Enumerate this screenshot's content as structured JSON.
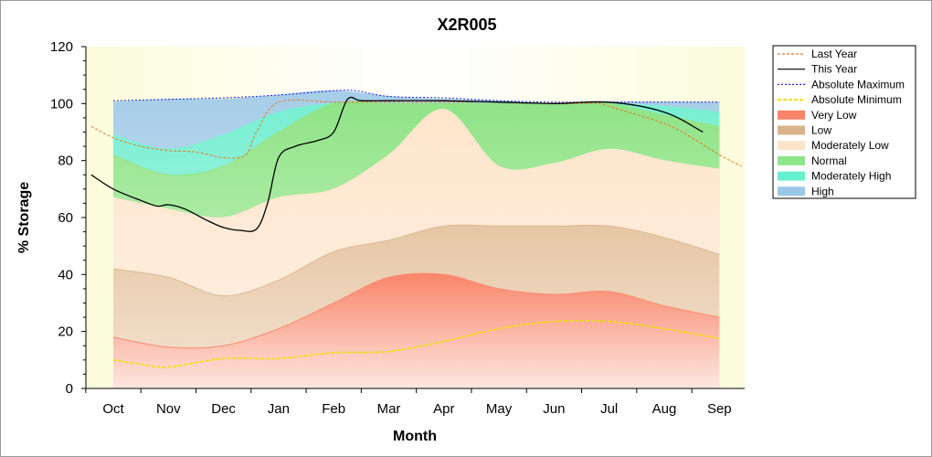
{
  "chart_data": {
    "type": "area",
    "title": "X2R005",
    "xlabel": "Month",
    "ylabel": "% Storage",
    "ylim": [
      0,
      120
    ],
    "yticks": [
      0,
      20,
      40,
      60,
      80,
      100,
      120
    ],
    "categories": [
      "Oct",
      "Nov",
      "Dec",
      "Jan",
      "Feb",
      "Mar",
      "Apr",
      "May",
      "Jun",
      "Jul",
      "Aug",
      "Sep"
    ],
    "grid": false,
    "legend_position": "right",
    "bands": {
      "x": [
        0,
        1,
        2,
        3,
        4,
        5,
        6,
        7,
        8,
        9,
        10,
        11
      ],
      "very_low": [
        18,
        14.5,
        15,
        21,
        30,
        39,
        40,
        35,
        33,
        34,
        29,
        25
      ],
      "low": [
        42,
        39,
        32.5,
        38,
        48,
        52,
        57,
        57,
        57,
        57,
        53,
        47
      ],
      "mod_low": [
        67,
        63,
        60,
        67,
        70,
        82,
        98,
        78,
        79,
        84,
        80,
        77
      ],
      "normal": [
        82,
        75,
        78,
        90,
        100,
        100,
        100,
        100,
        100,
        100,
        96,
        92
      ],
      "mod_high": [
        89,
        84,
        89,
        97,
        100,
        100,
        100,
        100,
        100,
        100,
        99,
        97
      ],
      "high": [
        100.5,
        101.5,
        101.5,
        103,
        104.5,
        102.5,
        101.5,
        101,
        100,
        100.5,
        100.5,
        100.5
      ]
    },
    "series": [
      {
        "name": "Last Year",
        "color": "#e07a2a",
        "dash": "3,2",
        "x": [
          -0.4,
          0,
          0.5,
          1,
          1.5,
          2,
          2.4,
          2.6,
          3,
          4,
          5,
          6,
          7,
          8,
          8.8,
          9,
          10,
          10.5,
          11,
          11.4
        ],
        "y": [
          92,
          88,
          85,
          83.5,
          83,
          81,
          82,
          90,
          100.5,
          100.5,
          100.5,
          100.5,
          100.5,
          100,
          100,
          99,
          93,
          88,
          82,
          78
        ]
      },
      {
        "name": "This Year",
        "color": "#000000",
        "dash": "",
        "x": [
          -0.4,
          0,
          0.5,
          0.8,
          1,
          1.3,
          1.7,
          2,
          2.3,
          2.6,
          2.8,
          3,
          3.3,
          3.7,
          4,
          4.25,
          4.5,
          5,
          6,
          7,
          8,
          9,
          10,
          10.7
        ],
        "y": [
          75,
          70,
          66,
          64,
          64.5,
          63,
          59,
          56.5,
          55.5,
          56,
          65,
          81,
          85,
          87,
          90,
          101.5,
          101,
          101,
          101,
          100.5,
          100,
          100.5,
          97,
          90
        ]
      },
      {
        "name": "Absolute Maximum",
        "color": "#2222cc",
        "dash": "2,2",
        "x": [
          0,
          1,
          2,
          3,
          4,
          4.4,
          5,
          6,
          7,
          8,
          9,
          10,
          11
        ],
        "y": [
          101,
          101.5,
          102,
          103,
          104.5,
          104.5,
          102.5,
          102,
          101,
          100.5,
          100.5,
          100.5,
          100.5
        ]
      },
      {
        "name": "Absolute Minimum",
        "color": "#f0e000",
        "dash": "4,2",
        "x": [
          0,
          0.5,
          1,
          2,
          3,
          4,
          5,
          6,
          7,
          8,
          9,
          10,
          11
        ],
        "y": [
          10,
          8.5,
          7.5,
          10.5,
          10.5,
          12.5,
          13,
          16.5,
          21,
          23.5,
          23.5,
          21,
          17.5
        ]
      }
    ],
    "legend": [
      {
        "label": "Last Year",
        "kind": "line",
        "color": "#e07a2a",
        "dash": "3,2"
      },
      {
        "label": "This Year",
        "kind": "line",
        "color": "#000000",
        "dash": ""
      },
      {
        "label": "Absolute Maximum",
        "kind": "line",
        "color": "#2222cc",
        "dash": "2,2"
      },
      {
        "label": "Absolute Minimum",
        "kind": "line",
        "color": "#f0e000",
        "dash": "4,2"
      },
      {
        "label": "Very Low",
        "kind": "swatch",
        "color": "#f8846a"
      },
      {
        "label": "Low",
        "kind": "swatch",
        "color": "#d9b48a"
      },
      {
        "label": "Moderately Low",
        "kind": "swatch",
        "color": "#fde3c8"
      },
      {
        "label": "Normal",
        "kind": "swatch",
        "color": "#8ee58a"
      },
      {
        "label": "Moderately High",
        "kind": "swatch",
        "color": "#66f0d0"
      },
      {
        "label": "High",
        "kind": "swatch",
        "color": "#9cc8e8"
      }
    ],
    "band_colors": {
      "very_low": "#f98c70",
      "low": "#dcb893",
      "mod_low": "#fde6cc",
      "normal": "#93e38c",
      "mod_high": "#79f1d3",
      "high": "#a9cfe8"
    }
  }
}
